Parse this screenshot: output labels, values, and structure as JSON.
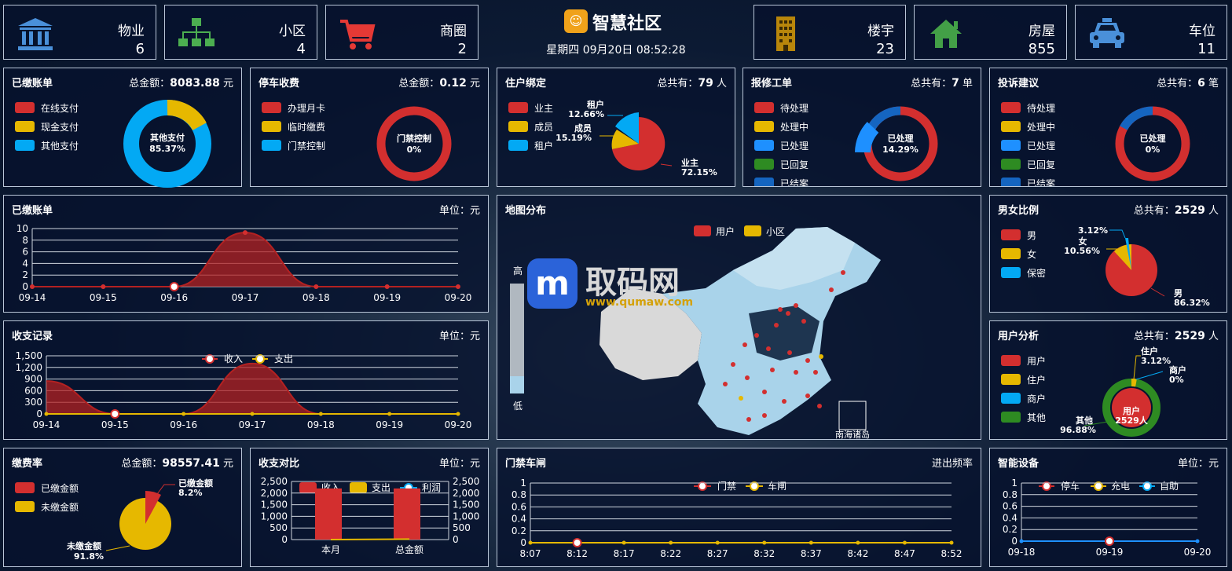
{
  "header": {
    "title": "智慧社区",
    "datetime": "星期四 09月20日 08:52:28"
  },
  "stats": [
    {
      "title": "物业",
      "value": "6",
      "icon": "bank-icon",
      "color": "#4a90d9"
    },
    {
      "title": "小区",
      "value": "4",
      "icon": "org-chart-icon",
      "color": "#4caf50"
    },
    {
      "title": "商圈",
      "value": "2",
      "icon": "shopping-cart-icon",
      "color": "#e53935"
    },
    {
      "title": "楼宇",
      "value": "23",
      "icon": "building-icon",
      "color": "#b8860b"
    },
    {
      "title": "房屋",
      "value": "855",
      "icon": "home-icon",
      "color": "#43a047"
    },
    {
      "title": "车位",
      "value": "11",
      "icon": "car-icon",
      "color": "#4a90d9"
    }
  ],
  "panels": {
    "paid": {
      "title": "已缴账单",
      "right_label": "总金额：",
      "right_value": "8083.88",
      "unit": " 元",
      "legend": [
        "在线支付",
        "现金支付",
        "其他支付"
      ],
      "center": "其他支付",
      "center_pct": "85.37%"
    },
    "parking": {
      "title": "停车收费",
      "right_label": "总金额：",
      "right_value": "0.12",
      "unit": " 元",
      "legend": [
        "办理月卡",
        "临时缴费",
        "门禁控制"
      ],
      "center": "门禁控制",
      "center_pct": "0%"
    },
    "resident": {
      "title": "住户绑定",
      "right_label": "总共有：",
      "right_value": "79",
      "unit": " 人",
      "legend": [
        "业主",
        "成员",
        "租户"
      ],
      "labels": [
        {
          "name": "租户",
          "pct": "12.66%"
        },
        {
          "name": "成员",
          "pct": "15.19%"
        },
        {
          "name": "业主",
          "pct": "72.15%"
        }
      ]
    },
    "repair": {
      "title": "报修工单",
      "right_label": "总共有：",
      "right_value": "7",
      "unit": " 单",
      "legend": [
        "待处理",
        "处理中",
        "已处理",
        "已回复",
        "已结案"
      ],
      "center": "已处理",
      "center_pct": "14.29%"
    },
    "complaint": {
      "title": "投诉建议",
      "right_label": "总共有：",
      "right_value": "6",
      "unit": " 笔",
      "legend": [
        "待处理",
        "处理中",
        "已处理",
        "已回复",
        "已结案"
      ],
      "center": "已处理",
      "center_pct": "0%"
    },
    "paid_line": {
      "title": "已缴账单",
      "right": "单位：元"
    },
    "income": {
      "title": "收支记录",
      "right": "单位：元",
      "legend": [
        "收入",
        "支出"
      ]
    },
    "map": {
      "title": "地图分布",
      "legend": [
        "用户",
        "小区"
      ],
      "high": "高",
      "low": "低",
      "south_sea": "南海诸岛",
      "watermark": "取码网",
      "watermark_url": "www.qumaw.com"
    },
    "gender": {
      "title": "男女比例",
      "right_label": "总共有：",
      "right_value": "2529",
      "unit": " 人",
      "legend": [
        "男",
        "女",
        "保密"
      ],
      "labels": [
        {
          "name": "",
          "pct": "3.12%"
        },
        {
          "name": "女",
          "pct": "10.56%"
        },
        {
          "name": "男",
          "pct": "86.32%"
        }
      ]
    },
    "users": {
      "title": "用户分析",
      "right_label": "总共有：",
      "right_value": "2529",
      "unit": " 人",
      "legend": [
        "用户",
        "住户",
        "商户",
        "其他"
      ],
      "labels": [
        {
          "name": "住户",
          "pct": "3.12%"
        },
        {
          "name": "商户",
          "pct": "0%"
        },
        {
          "name": "其他",
          "pct": "96.88%"
        }
      ],
      "center": "用户",
      "center_value": "2529人"
    },
    "rate": {
      "title": "缴费率",
      "right_label": "总金额：",
      "right_value": "98557.41",
      "unit": " 元",
      "legend": [
        "已缴金额",
        "未缴金额"
      ],
      "labels": [
        {
          "name": "已缴金额",
          "pct": "8.2%"
        },
        {
          "name": "未缴金额",
          "pct": "91.8%"
        }
      ]
    },
    "compare": {
      "title": "收支对比",
      "right": "单位：元",
      "legend": [
        "收入",
        "支出",
        "利润"
      ]
    },
    "gate": {
      "title": "门禁车闸",
      "right": "进出频率",
      "legend": [
        "门禁",
        "车闸"
      ]
    },
    "device": {
      "title": "智能设备",
      "right": "单位：元",
      "legend": [
        "停车",
        "充电",
        "自助"
      ]
    }
  },
  "colors": {
    "red": "#d32f2f",
    "yellow": "#e6b800",
    "blue": "#1e90ff",
    "green": "#2e8b22",
    "navy": "#1565c0",
    "cyan": "#03a9f4"
  },
  "chart_data": [
    {
      "type": "area",
      "name": "已缴账单",
      "categories": [
        "09-14",
        "09-15",
        "09-16",
        "09-17",
        "09-18",
        "09-19",
        "09-20"
      ],
      "values": [
        0,
        0,
        0,
        9.3,
        0,
        0,
        0
      ],
      "ylim": [
        0,
        10
      ],
      "yticks": [
        0,
        2,
        4,
        6,
        8,
        10
      ]
    },
    {
      "type": "area",
      "name": "收支记录",
      "categories": [
        "09-14",
        "09-15",
        "09-16",
        "09-17",
        "09-18",
        "09-19",
        "09-20"
      ],
      "series": [
        {
          "name": "收入",
          "values": [
            850,
            0,
            0,
            1300,
            0,
            0,
            0
          ]
        },
        {
          "name": "支出",
          "values": [
            0,
            0,
            0,
            0,
            0,
            0,
            0
          ]
        }
      ],
      "ylim": [
        0,
        1500
      ],
      "yticks": [
        "0",
        "300",
        "600",
        "900",
        "1,200",
        "1,500"
      ]
    },
    {
      "type": "bar",
      "name": "收支对比",
      "categories": [
        "本月",
        "总金额"
      ],
      "series": [
        {
          "name": "收入",
          "values": [
            2200,
            2200
          ]
        },
        {
          "name": "支出",
          "values": [
            0,
            0
          ]
        },
        {
          "name": "利润",
          "values": [
            0,
            20
          ]
        }
      ],
      "ylim": [
        0,
        2500
      ],
      "yticks": [
        "0",
        "500",
        "1,000",
        "1,500",
        "2,000",
        "2,500"
      ]
    },
    {
      "type": "line",
      "name": "门禁车闸",
      "categories": [
        "8:07",
        "8:12",
        "8:17",
        "8:22",
        "8:27",
        "8:32",
        "8:37",
        "8:42",
        "8:47",
        "8:52"
      ],
      "series": [
        {
          "name": "门禁",
          "values": [
            0,
            0,
            0,
            0,
            0,
            0,
            0,
            0,
            0,
            0
          ]
        },
        {
          "name": "车闸",
          "values": [
            0,
            0,
            0,
            0,
            0,
            0,
            0,
            0,
            0,
            0
          ]
        }
      ],
      "ylim": [
        0,
        1
      ],
      "yticks": [
        "0",
        "0.2",
        "0.4",
        "0.6",
        "0.8",
        "1"
      ]
    },
    {
      "type": "line",
      "name": "智能设备",
      "categories": [
        "09-18",
        "09-19",
        "09-20"
      ],
      "series": [
        {
          "name": "停车",
          "values": [
            0,
            0,
            0
          ]
        },
        {
          "name": "充电",
          "values": [
            0,
            0,
            0
          ]
        },
        {
          "name": "自助",
          "values": [
            0,
            0,
            0
          ]
        }
      ],
      "ylim": [
        0,
        1
      ],
      "yticks": [
        "0",
        "0.2",
        "0.4",
        "0.6",
        "0.8",
        "1"
      ]
    }
  ]
}
